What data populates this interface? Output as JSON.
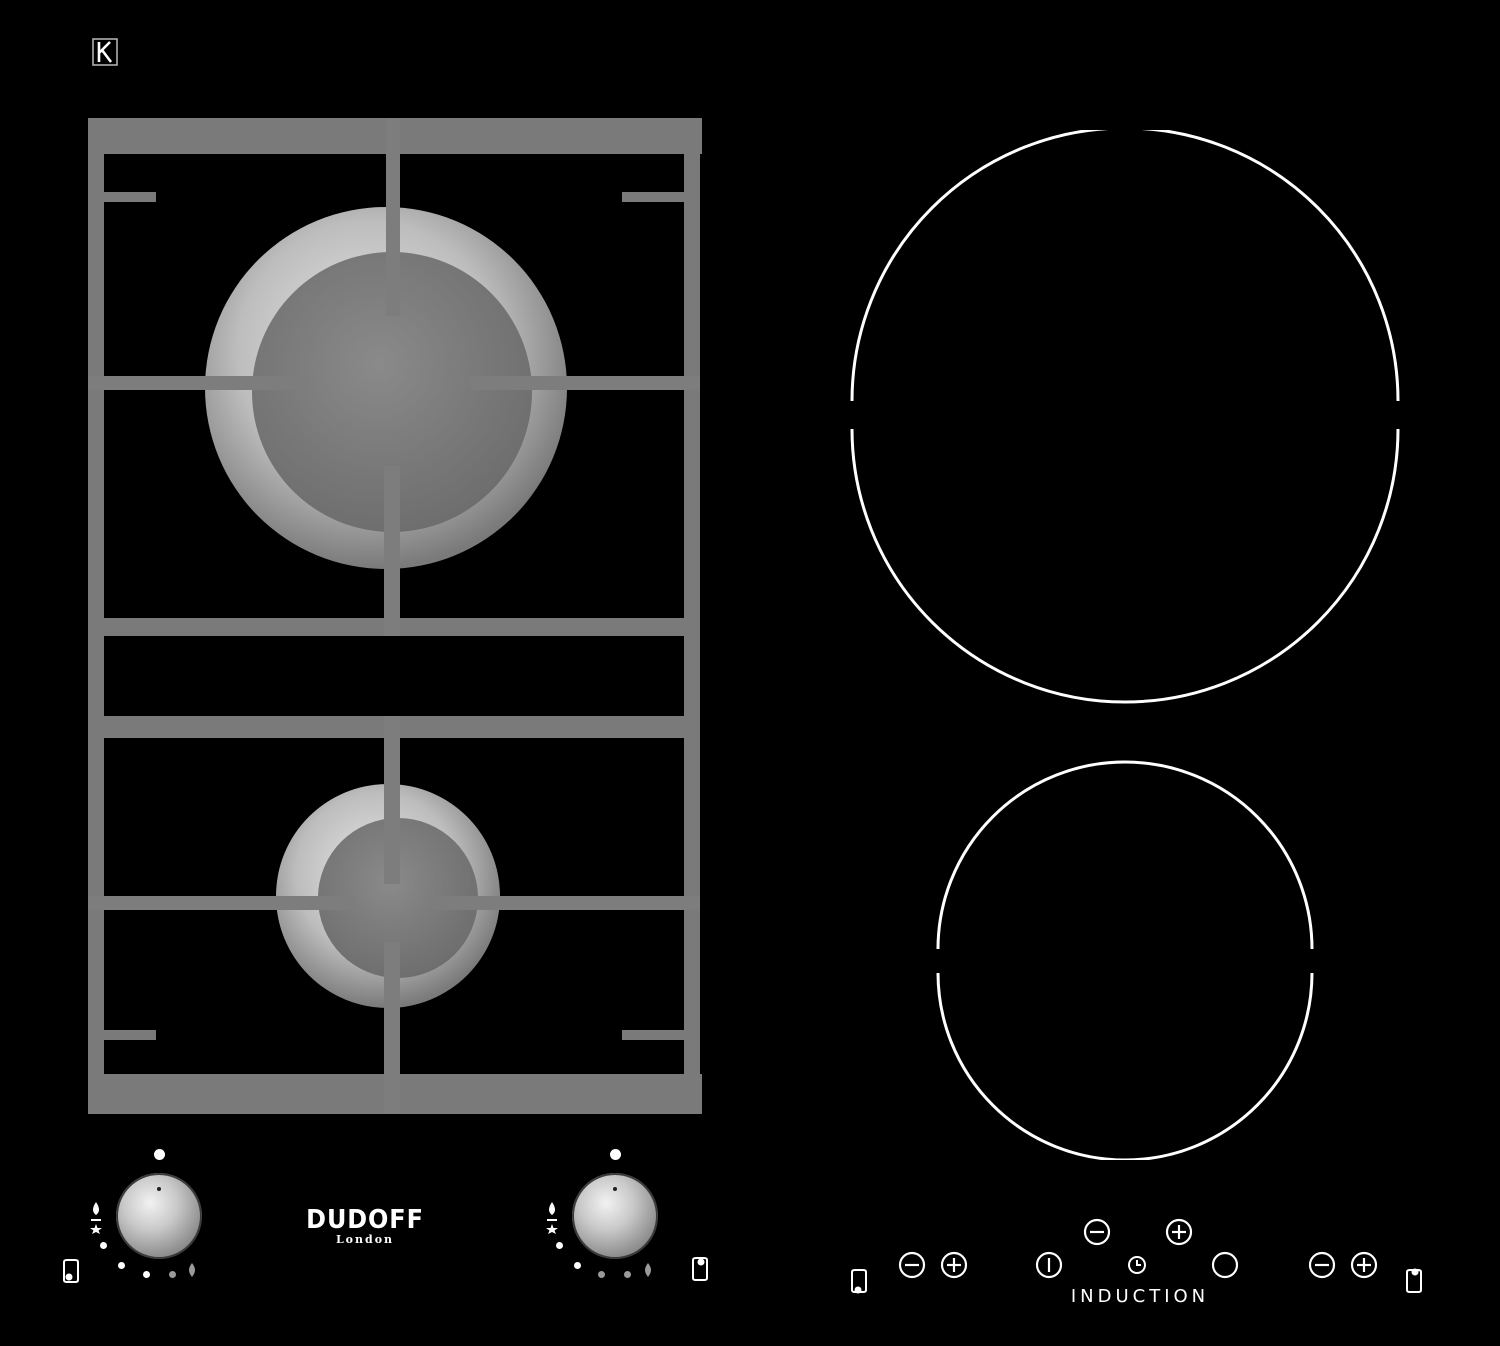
{
  "brand": {
    "name": "DUDOFF",
    "location": "London"
  },
  "induction_panel": {
    "label": "INDUCTION"
  },
  "controls": {
    "left_knob": {
      "icon": "knob-icon"
    },
    "right_knob": {
      "icon": "knob-icon"
    },
    "touch_icons": [
      "minus-icon",
      "plus-icon",
      "power-icon",
      "timer-icon",
      "lock-icon"
    ]
  },
  "colors": {
    "background": "#000000",
    "grate": "#7b7b7b",
    "zone_outline": "#ffffff"
  }
}
